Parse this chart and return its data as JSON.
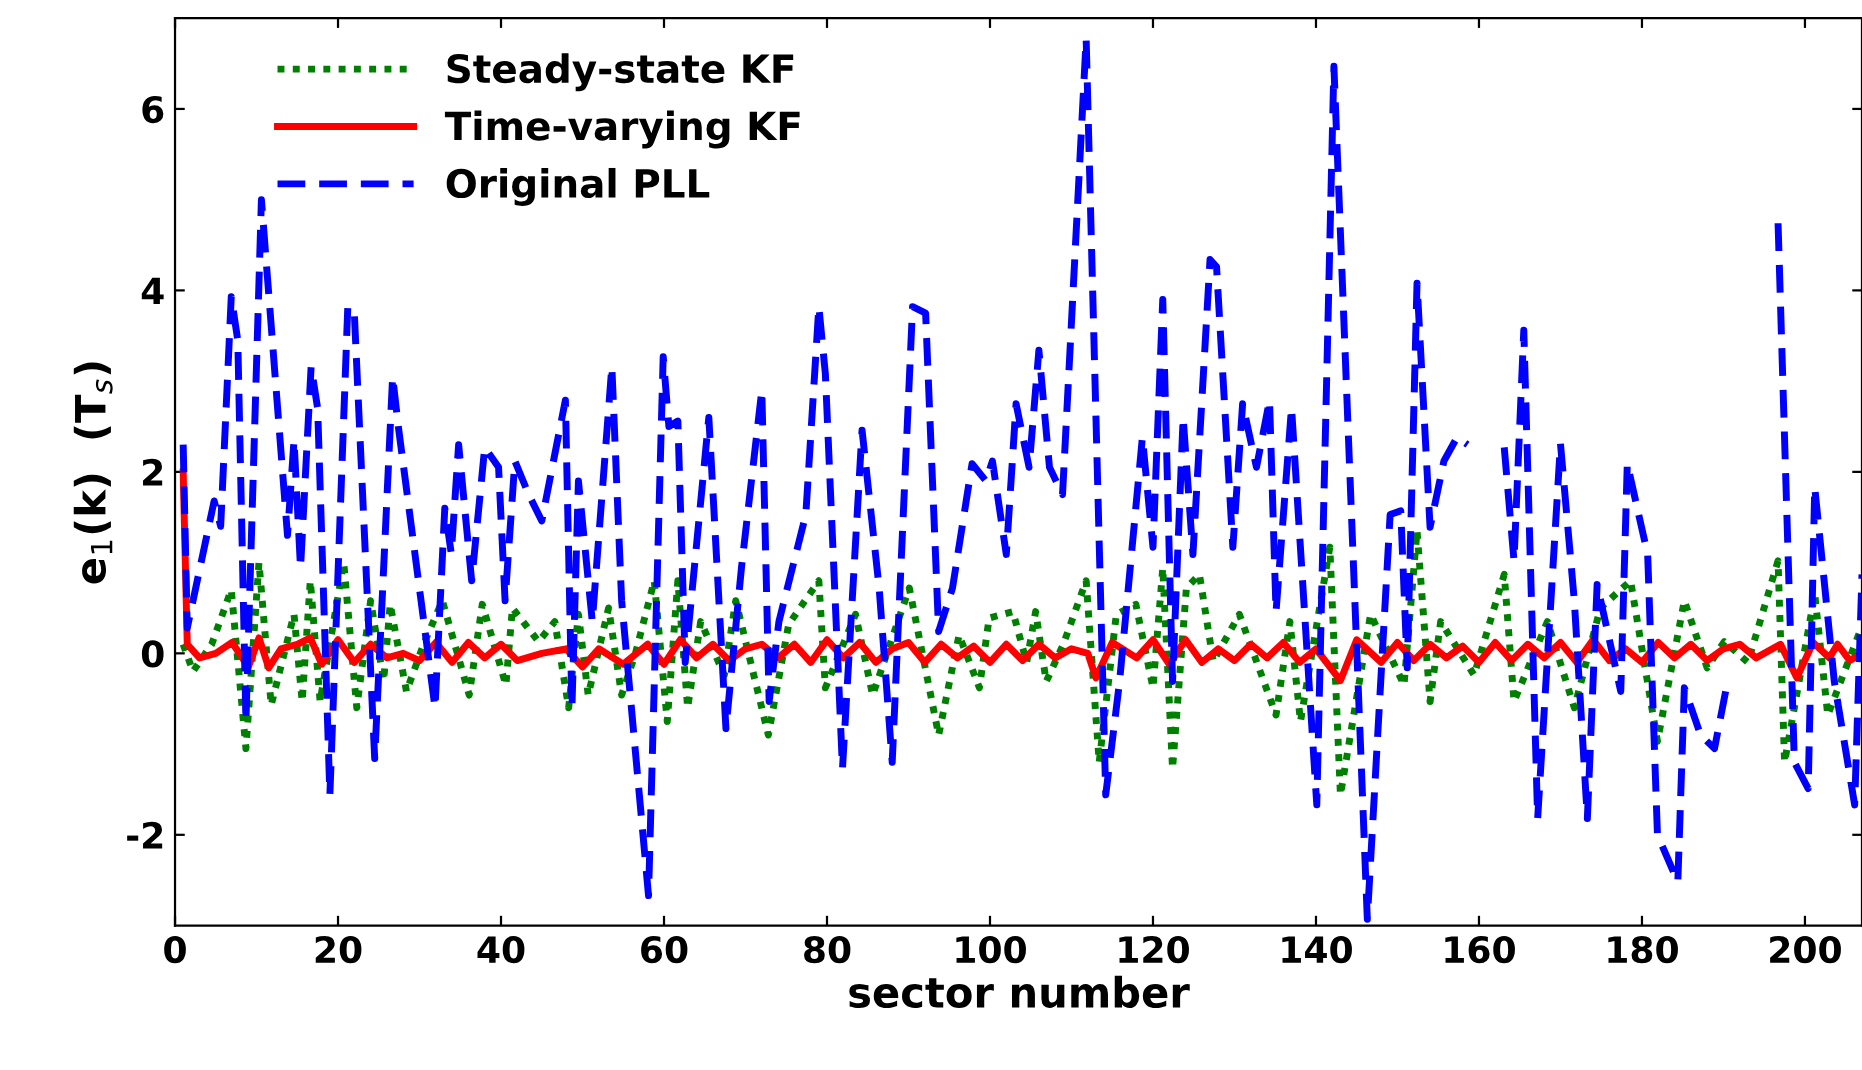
{
  "chart_data": {
    "type": "line",
    "xlabel": "sector number",
    "ylabel": "e$_{1}$(k)  (T$_{s}$)",
    "xlim": [
      0,
      207
    ],
    "ylim": [
      -3,
      7
    ],
    "xticks": [
      0,
      20,
      40,
      60,
      80,
      100,
      120,
      140,
      160,
      180,
      200
    ],
    "yticks": [
      -2,
      0,
      2,
      4,
      6
    ],
    "grid": false,
    "legend": "top left",
    "series": [
      {
        "name": "Steady-state KF",
        "color": "#008000",
        "line_style": "dotted",
        "x": [
          1,
          2.2,
          4.5,
          6.9,
          8.7,
          10.3,
          11.8,
          14.6,
          15.6,
          16.6,
          17.8,
          20.7,
          22.3,
          24,
          25.6,
          26.4,
          28.4,
          30.5,
          32.8,
          36.1,
          37.7,
          40.6,
          41.4,
          44.6,
          46.6,
          48.3,
          49.5,
          50.7,
          53.2,
          54.8,
          56.5,
          58.8,
          60.4,
          61.7,
          62.9,
          64.5,
          67.4,
          68.8,
          72.8,
          75.3,
          79,
          79.8,
          83.5,
          85.6,
          90.1,
          93.7,
          96.2,
          98.7,
          99.9,
          102.8,
          104.5,
          105.6,
          106.9,
          109,
          111.8,
          113.4,
          115.5,
          117.9,
          120,
          121.2,
          122.4,
          124.1,
          125.7,
          127.4,
          130.6,
          135.1,
          136.8,
          138.1,
          141.7,
          143,
          146.7,
          150.8,
          152.4,
          154,
          155.3,
          159.4,
          163.1,
          164.3,
          168.4,
          171.7,
          174.9,
          178.6,
          181.9,
          185.2,
          188,
          190.1,
          193,
          196.7,
          197.5,
          201.2,
          202.8,
          206.9
        ],
        "values": [
          0.1,
          -0.2,
          0.1,
          0.7,
          -1.05,
          1.0,
          -0.57,
          0.43,
          -0.53,
          0.8,
          -0.53,
          1.0,
          -0.6,
          0.58,
          -0.3,
          0.54,
          -0.42,
          0.1,
          0.58,
          -0.46,
          0.54,
          -0.35,
          0.5,
          0.13,
          0.35,
          -0.6,
          0.43,
          -0.46,
          0.5,
          -0.46,
          0.0,
          0.8,
          -0.75,
          0.8,
          -0.6,
          0.35,
          -0.24,
          0.58,
          -0.9,
          0.32,
          0.8,
          -0.38,
          0.43,
          -0.46,
          0.72,
          -0.9,
          0.2,
          -0.38,
          0.39,
          0.46,
          -0.1,
          0.46,
          -0.31,
          0.1,
          0.8,
          -1.2,
          0.43,
          0.54,
          -0.38,
          0.94,
          -1.27,
          0.72,
          0.87,
          -0.09,
          0.43,
          -0.68,
          0.35,
          -0.75,
          1.17,
          -1.56,
          0.43,
          -0.35,
          1.35,
          -0.53,
          0.35,
          -0.24,
          0.87,
          -0.53,
          0.35,
          -0.6,
          0.5,
          0.8,
          -0.97,
          0.58,
          -0.16,
          0.13,
          -0.1,
          1.02,
          -1.2,
          0.65,
          -0.68,
          0.28
        ]
      },
      {
        "name": "Time-varying KF",
        "color": "#ff0000",
        "line_style": "solid",
        "x": [
          1,
          1.5,
          3,
          5,
          7,
          9,
          10.3,
          11.5,
          13,
          15,
          16.6,
          18,
          20,
          22,
          24,
          26,
          28,
          30,
          32,
          34,
          36,
          38,
          40,
          42,
          45,
          48,
          50,
          52,
          55,
          58,
          60,
          62,
          64,
          66,
          68,
          70,
          72,
          74,
          76,
          78,
          80,
          82,
          84,
          86,
          88,
          90,
          92,
          94,
          96,
          98,
          100,
          102,
          104,
          106,
          108,
          110,
          112,
          113,
          115,
          118,
          120,
          122,
          124,
          126,
          128,
          130,
          132,
          134,
          136,
          138,
          140,
          143,
          145,
          148,
          150,
          152,
          154,
          156,
          158,
          160,
          162,
          164,
          166,
          168,
          170,
          172,
          174,
          176,
          178,
          180,
          182,
          184,
          186,
          188,
          190,
          192,
          194,
          197,
          199,
          201,
          203,
          204,
          205.5,
          207
        ],
        "values": [
          2.0,
          0.1,
          -0.05,
          0.0,
          0.12,
          -0.15,
          0.17,
          -0.16,
          0.05,
          0.1,
          0.17,
          -0.12,
          0.15,
          -0.1,
          0.1,
          -0.05,
          0.0,
          -0.08,
          0.12,
          -0.1,
          0.12,
          -0.05,
          0.1,
          -0.08,
          0.0,
          0.05,
          -0.15,
          0.05,
          -0.12,
          0.1,
          -0.12,
          0.15,
          -0.05,
          0.1,
          -0.08,
          0.05,
          0.1,
          -0.05,
          0.1,
          -0.1,
          0.15,
          -0.05,
          0.12,
          -0.1,
          0.05,
          0.12,
          -0.1,
          0.1,
          -0.05,
          0.08,
          -0.1,
          0.1,
          -0.08,
          0.1,
          -0.05,
          0.05,
          0.0,
          -0.27,
          0.12,
          -0.05,
          0.15,
          -0.12,
          0.15,
          -0.1,
          0.05,
          -0.08,
          0.1,
          -0.05,
          0.12,
          -0.1,
          0.05,
          -0.3,
          0.15,
          -0.1,
          0.12,
          -0.08,
          0.1,
          -0.05,
          0.08,
          -0.1,
          0.12,
          -0.08,
          0.1,
          -0.05,
          0.12,
          -0.1,
          0.15,
          -0.08,
          0.05,
          -0.1,
          0.12,
          -0.05,
          0.1,
          -0.08,
          0.05,
          0.1,
          -0.05,
          0.1,
          -0.27,
          0.12,
          -0.05,
          0.1,
          -0.08,
          0.0
        ]
      },
      {
        "name": "Original PLL",
        "color": "#0000ff",
        "line_style": "dashed",
        "x": [
          1,
          1.5,
          4.8,
          5.6,
          6.9,
          7.7,
          8.7,
          10.6,
          13.8,
          14.6,
          15.4,
          16.7,
          17.5,
          19,
          21.2,
          22,
          24.5,
          26.7,
          27.4,
          31.9,
          33.1,
          33.9,
          34.8,
          36.4,
          38,
          39.7,
          40.5,
          41.7,
          43.4,
          45,
          47.9,
          48.7,
          49.5,
          51.2,
          53.6,
          54.8,
          58.1,
          59.9,
          60.6,
          61.7,
          62.6,
          65.5,
          67.6,
          69.5,
          72,
          72.9,
          74.1,
          77.4,
          79,
          79.8,
          81.9,
          84.3,
          86.4,
          88,
          90.5,
          92.1,
          93.7,
          95.4,
          97.8,
          99.5,
          100.3,
          102,
          103.2,
          104.8,
          106,
          107.3,
          108.9,
          111.8,
          114.2,
          115.9,
          118.7,
          120,
          121.2,
          122.4,
          123.7,
          124.9,
          127,
          127.8,
          129.8,
          131,
          132.7,
          134.3,
          135.1,
          137,
          140.1,
          142.2,
          146.3,
          149.1,
          150.4,
          151.2,
          152.4,
          154,
          155.7,
          157.3,
          158.6,
          161,
          163.1,
          164.3,
          165.5,
          167.2,
          170,
          171.7,
          173.3,
          174.5,
          177.4,
          178.2,
          180.7,
          181.9,
          184.4,
          185.2,
          187.2,
          188.9,
          190.5,
          193.8,
          196.7,
          198.7,
          200.4,
          201.2,
          203.6,
          206.1,
          207
        ],
        "values": [
          2.3,
          0.28,
          1.68,
          1.4,
          3.93,
          3.45,
          -0.75,
          5.0,
          1.3,
          2.35,
          0.94,
          3.16,
          2.7,
          -1.56,
          3.82,
          3.75,
          -1.16,
          3.05,
          2.5,
          -0.6,
          1.6,
          1.1,
          2.3,
          0.8,
          2.27,
          2.05,
          0.58,
          2.12,
          1.75,
          1.46,
          2.79,
          -0.6,
          1.9,
          0.35,
          3.16,
          0.58,
          -2.67,
          3.27,
          2.5,
          2.56,
          -0.1,
          2.6,
          -0.83,
          0.94,
          2.9,
          -0.53,
          0.35,
          1.53,
          3.82,
          3.08,
          -1.27,
          2.46,
          0.72,
          -1.2,
          3.82,
          3.75,
          0.24,
          0.72,
          2.09,
          1.9,
          2.12,
          1.09,
          2.75,
          2.05,
          3.34,
          2.05,
          1.75,
          6.77,
          -1.56,
          -0.31,
          2.38,
          1.17,
          3.9,
          -0.31,
          2.6,
          1.09,
          4.34,
          4.26,
          1.17,
          2.75,
          2.05,
          2.79,
          0.46,
          2.71,
          -1.67,
          6.47,
          -2.93,
          1.53,
          1.57,
          -0.16,
          4.08,
          1.39,
          2.12,
          2.38,
          2.3,
          null,
          2.27,
          1.02,
          3.56,
          -1.82,
          2.31,
          0.58,
          -1.82,
          0.76,
          -0.42,
          2.09,
          1.09,
          -2.0,
          -2.52,
          -0.38,
          -0.9,
          -1.05,
          -0.31,
          null,
          4.74,
          -1.2,
          -1.49,
          1.83,
          -0.31,
          -1.67,
          0.87
        ]
      }
    ]
  }
}
